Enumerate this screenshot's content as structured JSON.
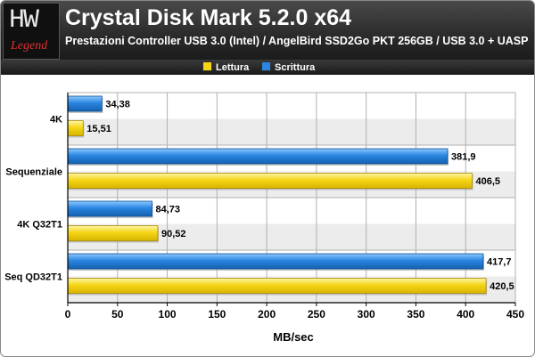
{
  "header": {
    "logo_text": "HW",
    "logo_subtext": "Legend",
    "title": "Crystal Disk Mark 5.2.0 x64",
    "subtitle": "Prestazioni Controller USB 3.0 (Intel) / AngelBird SSD2Go PKT 256GB / USB 3.0 + UASP"
  },
  "colors": {
    "lettura": "#f5d616",
    "scrittura": "#2a86e0",
    "band": "#ececec"
  },
  "chart_data": {
    "type": "bar",
    "orientation": "horizontal",
    "categories": [
      "4K",
      "Sequenziale",
      "4K Q32T1",
      "Seq QD32T1"
    ],
    "series": [
      {
        "name": "Scrittura",
        "values": [
          34.38,
          381.9,
          84.73,
          417.7
        ],
        "labels": [
          "34,38",
          "381,9",
          "84,73",
          "417,7"
        ]
      },
      {
        "name": "Lettura",
        "values": [
          15.51,
          406.5,
          90.52,
          420.5
        ],
        "labels": [
          "15,51",
          "406,5",
          "90,52",
          "420,5"
        ]
      }
    ],
    "xlabel": "MB/sec",
    "xlim": [
      0,
      450
    ],
    "xticks": [
      0,
      50,
      100,
      150,
      200,
      250,
      300,
      350,
      400,
      450
    ],
    "grid": true,
    "legend_placement": "top-center"
  }
}
